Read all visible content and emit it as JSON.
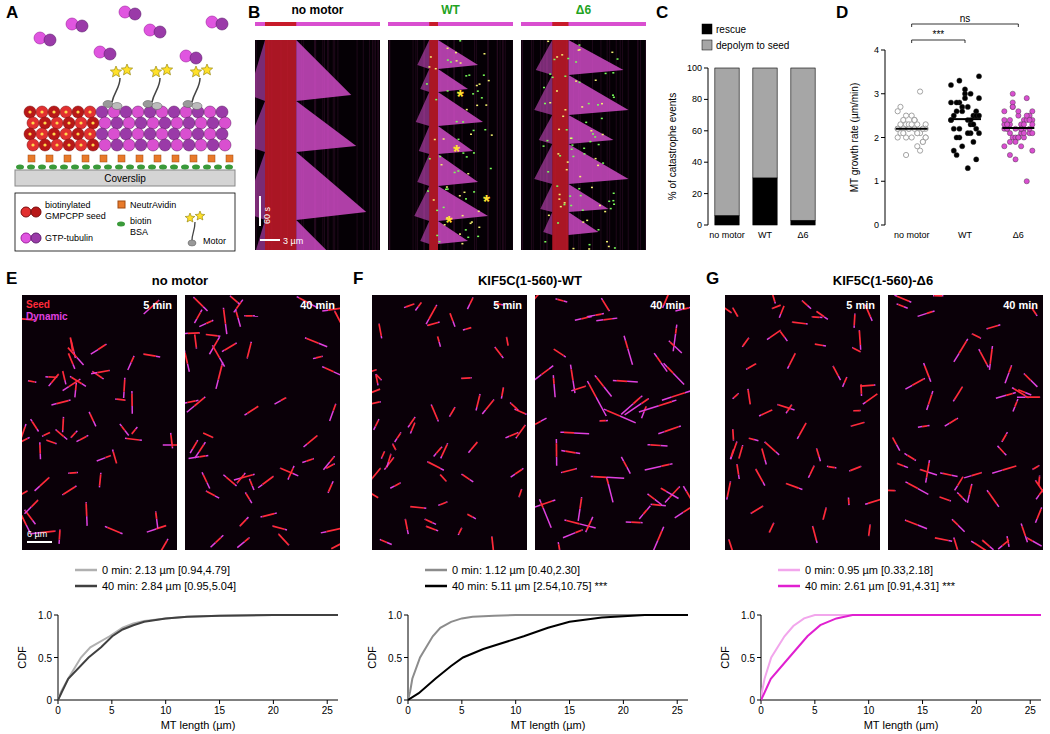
{
  "figure": {
    "panels": [
      "A",
      "B",
      "C",
      "D",
      "E",
      "F",
      "G"
    ],
    "schematic": {
      "coverslip": "Coverslip",
      "seed": [
        "biotinylated",
        "GMPCPP seed"
      ],
      "neutravidin": "NeutrAvidin",
      "biotin": [
        "biotin",
        "BSA"
      ],
      "tubulin": "GTP-tubulin",
      "motor": "Motor"
    },
    "kymographs": {
      "titles": [
        {
          "text": "no motor",
          "color": "#000000"
        },
        {
          "text": "WT",
          "color": "#1fa31f"
        },
        {
          "text": "Δ6",
          "color": "#1fa31f"
        }
      ],
      "time_scale": "60 s",
      "length_scale": "3 µm",
      "rescue_marker": "*"
    },
    "images": {
      "titles": [
        "no motor",
        "KIF5C(1-560)-WT",
        "KIF5C(1-560)-Δ6"
      ],
      "times": [
        "5 min",
        "40 min"
      ],
      "seed_label": "Seed",
      "dynamic_label": "Dynamic",
      "scale_bar": "6 µm"
    }
  },
  "chart_data": [
    {
      "type": "bar",
      "stacked": true,
      "categories": [
        "no motor",
        "WT",
        "Δ6"
      ],
      "series": [
        {
          "name": "rescue",
          "color": "#000000",
          "values": [
            6,
            30,
            3
          ]
        },
        {
          "name": "depolym to seed",
          "color": "#a6a6a6",
          "values": [
            94,
            70,
            97
          ]
        }
      ],
      "y_label": "% of catastrophe events",
      "ylim": [
        0,
        100
      ],
      "yticks": [
        0,
        20,
        40,
        60,
        80,
        100
      ],
      "legend": "top"
    },
    {
      "type": "scatter",
      "marker": "circle",
      "categories": [
        "no motor",
        "WT",
        "Δ6"
      ],
      "colors": [
        "#9a9a9a",
        "#000000",
        "#d94fd0"
      ],
      "groups": [
        [
          2.2,
          2.1,
          2.3,
          2.0,
          2.4,
          2.2,
          1.9,
          2.5,
          2.3,
          2.1,
          2.2,
          2.6,
          1.8,
          2.0,
          2.3,
          2.4,
          2.1,
          2.2,
          2.0,
          2.7,
          1.7,
          2.3,
          2.2,
          2.1,
          2.5,
          2.0,
          2.2,
          2.4,
          1.9,
          2.3,
          2.1,
          3.05,
          2.2,
          2.0,
          2.3,
          1.6,
          2.2,
          2.4,
          2.1,
          2.2
        ],
        [
          2.4,
          2.1,
          2.8,
          3.4,
          1.3,
          2.6,
          2.2,
          3.0,
          2.5,
          1.9,
          2.7,
          3.2,
          2.3,
          2.0,
          2.9,
          2.4,
          1.6,
          2.6,
          3.1,
          2.2,
          2.5,
          1.8,
          2.8,
          2.4,
          3.3,
          2.1,
          2.7,
          2.0,
          2.5,
          2.9,
          1.7,
          2.3,
          2.6,
          2.4,
          3.0,
          2.2,
          2.5,
          2.1,
          2.8,
          1.5
        ],
        [
          2.2,
          2.4,
          2.0,
          2.6,
          1.8,
          2.3,
          2.1,
          2.5,
          2.2,
          2.9,
          1.5,
          2.3,
          2.0,
          2.7,
          2.4,
          2.1,
          1.9,
          2.2,
          2.6,
          2.3,
          1.0,
          2.0,
          2.4,
          2.2,
          2.8,
          1.7,
          2.3,
          2.1,
          2.5,
          2.0,
          2.2,
          2.4,
          1.9,
          2.6,
          2.3,
          3.0,
          2.1,
          2.2,
          1.6,
          2.4,
          2.0,
          2.3,
          2.5,
          2.2,
          1.8,
          2.1,
          2.7,
          2.3,
          2.2,
          2.4
        ]
      ],
      "means": [
        2.2,
        2.42,
        2.22
      ],
      "y_label": "MT growth rate (µm/min)",
      "ylim": [
        0,
        4
      ],
      "yticks": [
        0,
        1,
        2,
        3,
        4
      ],
      "comparisons": [
        {
          "between": [
            0,
            1
          ],
          "label": "***"
        },
        {
          "between": [
            0,
            2
          ],
          "label": "ns"
        }
      ]
    },
    {
      "type": "line",
      "series": [
        {
          "name": "0 min: 2.13 µm [0.94,4.79]",
          "color": "#b0b0b0",
          "x": [
            0,
            0.3,
            0.94,
            2.13,
            3,
            4.79,
            6,
            7,
            8,
            10,
            12,
            15,
            20,
            26
          ],
          "values": [
            0,
            0.1,
            0.25,
            0.5,
            0.62,
            0.75,
            0.85,
            0.9,
            0.93,
            0.96,
            0.98,
            0.99,
            1,
            1
          ]
        },
        {
          "name": "40 min: 2.84 µm [0.95,5.04]",
          "color": "#404040",
          "x": [
            0,
            0.3,
            0.95,
            2.84,
            4,
            5.04,
            6,
            7,
            8,
            10,
            12,
            15,
            20,
            26
          ],
          "values": [
            0,
            0.08,
            0.25,
            0.5,
            0.62,
            0.75,
            0.83,
            0.88,
            0.92,
            0.96,
            0.98,
            0.99,
            1,
            1
          ]
        }
      ],
      "x_label": "MT length (µm)",
      "y_label": "CDF",
      "xlim": [
        0,
        26
      ],
      "xticks": [
        0,
        5,
        10,
        15,
        20,
        25
      ],
      "ylim": [
        0,
        1
      ],
      "yticks": [
        0,
        0.5,
        {
          "value": 1,
          "label": "1.0"
        }
      ],
      "legend": "top"
    },
    {
      "type": "line",
      "series": [
        {
          "name": "0 min: 1.12 µm [0.40,2.30]",
          "color": "#8c8c8c",
          "x": [
            0,
            0.2,
            0.4,
            1.12,
            2.3,
            3,
            4,
            5,
            6,
            8,
            10,
            26
          ],
          "values": [
            0,
            0.1,
            0.25,
            0.5,
            0.75,
            0.85,
            0.92,
            0.96,
            0.98,
            0.99,
            1,
            1
          ]
        },
        {
          "name": "40 min: 5.11 µm [2.54,10.75]",
          "color": "#000000",
          "x": [
            0,
            1,
            2.54,
            4,
            5.11,
            7,
            10.75,
            13,
            15,
            18,
            22,
            26
          ],
          "values": [
            0,
            0.08,
            0.25,
            0.4,
            0.5,
            0.6,
            0.75,
            0.85,
            0.92,
            0.97,
            1,
            1
          ]
        }
      ],
      "annotation": "***",
      "x_label": "MT length (µm)",
      "y_label": "CDF",
      "xlim": [
        0,
        26
      ],
      "xticks": [
        0,
        5,
        10,
        15,
        20,
        25
      ],
      "ylim": [
        0,
        1
      ],
      "yticks": [
        0,
        0.5,
        {
          "value": 1,
          "label": "1.0"
        }
      ],
      "legend": "top"
    },
    {
      "type": "line",
      "series": [
        {
          "name": "0 min: 0.95 µm [0.33,2.18]",
          "color": "#f2a6ec",
          "x": [
            0,
            0.1,
            0.33,
            0.95,
            2.18,
            3,
            4,
            5,
            26
          ],
          "values": [
            0,
            0.1,
            0.25,
            0.5,
            0.75,
            0.87,
            0.96,
            1,
            1
          ]
        },
        {
          "name": "40 min: 2.61 µm [0.91,4.31]",
          "color": "#e020d0",
          "x": [
            0,
            0.3,
            0.91,
            2.61,
            4.31,
            5.5,
            7,
            8.5,
            26
          ],
          "values": [
            0,
            0.08,
            0.25,
            0.5,
            0.75,
            0.88,
            0.96,
            1,
            1
          ]
        }
      ],
      "annotation": "***",
      "x_label": "MT length (µm)",
      "y_label": "CDF",
      "xlim": [
        0,
        26
      ],
      "xticks": [
        0,
        5,
        10,
        15,
        20,
        25
      ],
      "ylim": [
        0,
        1
      ],
      "yticks": [
        0,
        0.5,
        {
          "value": 1,
          "label": "1.0"
        }
      ],
      "legend": "top"
    }
  ]
}
